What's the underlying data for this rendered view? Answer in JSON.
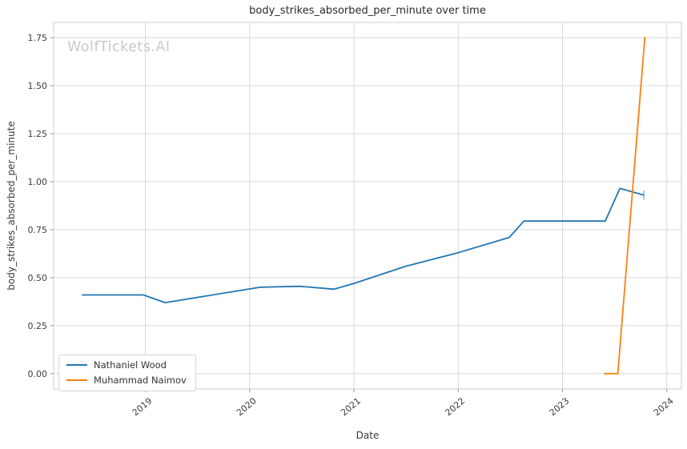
{
  "watermark": {
    "text": "WolfTickets.AI"
  },
  "chart_data": {
    "type": "line",
    "title": "body_strikes_absorbed_per_minute over time",
    "xlabel": "Date",
    "ylabel": "body_strikes_absorbed_per_minute",
    "grid": true,
    "legend_position": "lower left",
    "xlim": [
      2018.12,
      2024.14
    ],
    "ylim": [
      -0.08,
      1.83
    ],
    "x_ticks": [
      2019,
      2020,
      2021,
      2022,
      2023,
      2024
    ],
    "x_tick_labels": [
      "2019",
      "2020",
      "2021",
      "2022",
      "2023",
      "2024"
    ],
    "y_ticks": [
      0.0,
      0.25,
      0.5,
      0.75,
      1.0,
      1.25,
      1.5,
      1.75
    ],
    "y_tick_labels": [
      "0.00",
      "0.25",
      "0.50",
      "0.75",
      "1.00",
      "1.25",
      "1.50",
      "1.75"
    ],
    "colors": {
      "grid": "#d8d8d8",
      "spine": "#cccccc",
      "tick": "#999999",
      "text": "#3b3b3b"
    },
    "series": [
      {
        "name": "Nathaniel Wood",
        "color": "#1f77b4",
        "end_cap": "vline",
        "points": [
          [
            2018.39,
            0.41
          ],
          [
            2018.98,
            0.41
          ],
          [
            2019.19,
            0.37
          ],
          [
            2020.1,
            0.45
          ],
          [
            2020.48,
            0.455
          ],
          [
            2020.81,
            0.44
          ],
          [
            2021.0,
            0.47
          ],
          [
            2021.5,
            0.56
          ],
          [
            2022.0,
            0.63
          ],
          [
            2022.49,
            0.71
          ],
          [
            2022.63,
            0.795
          ],
          [
            2023.0,
            0.795
          ],
          [
            2023.41,
            0.795
          ],
          [
            2023.55,
            0.965
          ],
          [
            2023.78,
            0.93
          ]
        ]
      },
      {
        "name": "Muhammad Naimov",
        "color": "#ff7f0e",
        "end_cap": null,
        "points": [
          [
            2023.4,
            0.0
          ],
          [
            2023.53,
            0.0
          ],
          [
            2023.79,
            1.755
          ]
        ]
      }
    ]
  }
}
